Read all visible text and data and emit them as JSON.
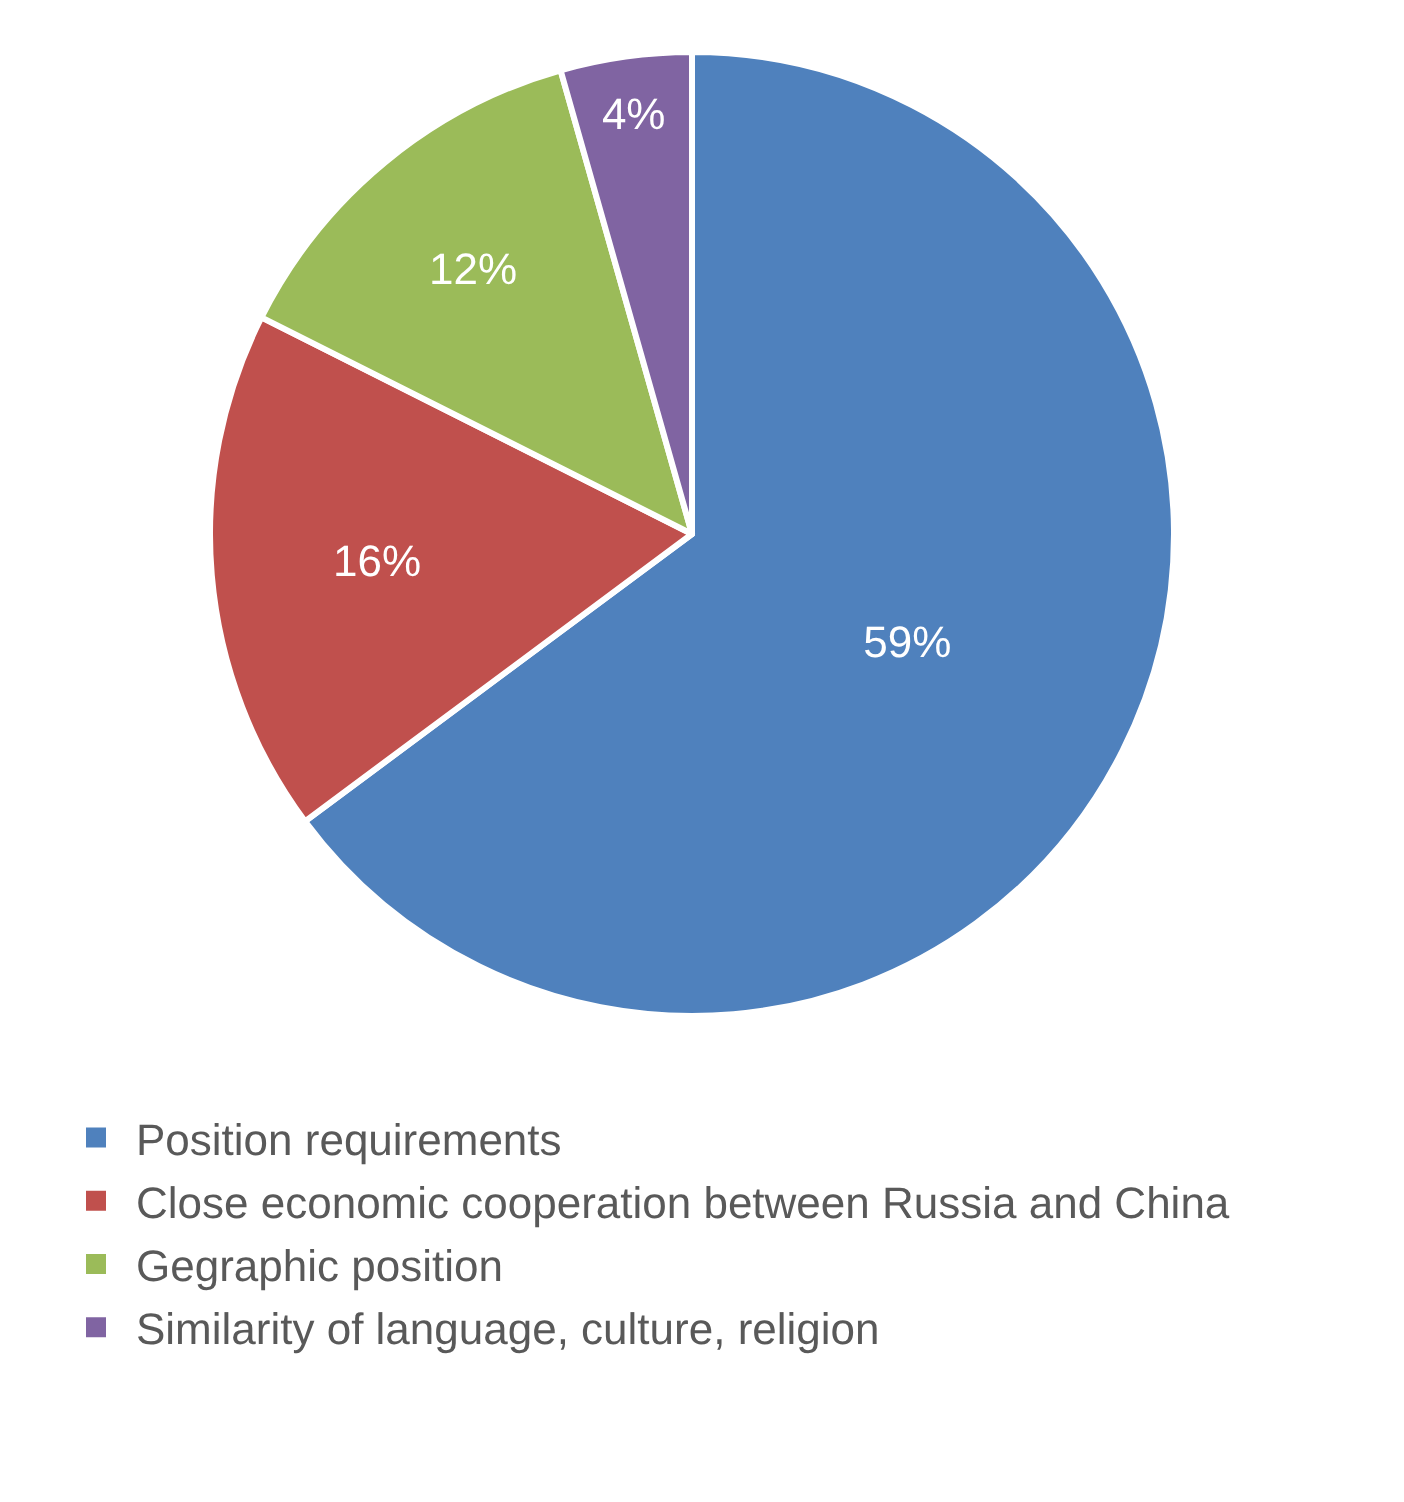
{
  "chart_data": {
    "type": "pie",
    "categories": [
      "Position requirements",
      "Close economic cooperation between Russia and China",
      "Gegraphic position",
      "Similarity of language, culture, religion"
    ],
    "values": [
      59,
      16,
      12,
      4
    ],
    "colors": [
      "#4f81bd",
      "#c0504d",
      "#9bbb59",
      "#8064a2"
    ],
    "value_labels": [
      "59%",
      "16%",
      "12%",
      "4%"
    ],
    "legend": "bottom"
  }
}
